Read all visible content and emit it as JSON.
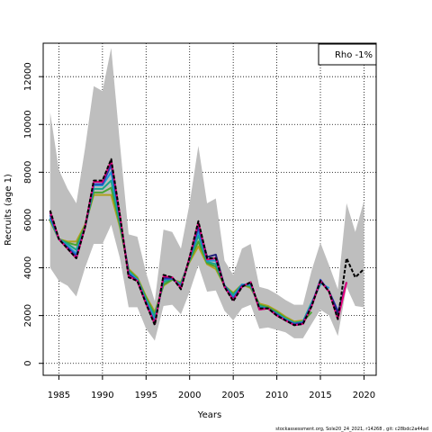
{
  "chart_data": {
    "type": "line",
    "title": "",
    "xlabel": "Years",
    "ylabel": "Recruits (age 1)",
    "xlim": [
      1983.2,
      2021.4
    ],
    "ylim": [
      -500,
      13400
    ],
    "x_ticks": [
      1985,
      1990,
      1995,
      2000,
      2005,
      2010,
      2015,
      2020
    ],
    "y_ticks": [
      0,
      2000,
      4000,
      6000,
      8000,
      10000,
      12000
    ],
    "grid": true,
    "grid_style": "dotted",
    "legend_text": "Rho -1%",
    "legend_position": "top-right",
    "footer": "stockassessment.org,  Sole20_24_2021,  r14268 ,  git:  c28bdc2a44ad",
    "confidence_band": {
      "color": "#bebebe",
      "x": [
        1984,
        1985,
        1986,
        1987,
        1988,
        1989,
        1990,
        1991,
        1992,
        1993,
        1994,
        1995,
        1996,
        1997,
        1998,
        1999,
        2000,
        2001,
        2002,
        2003,
        2004,
        2005,
        2006,
        2007,
        2008,
        2009,
        2010,
        2011,
        2012,
        2013,
        2014,
        2015,
        2016,
        2017,
        2018,
        2019,
        2020
      ],
      "upper": [
        10500,
        8100,
        7300,
        6700,
        9000,
        11600,
        11400,
        13200,
        9200,
        5400,
        5300,
        3800,
        2600,
        5600,
        5500,
        4800,
        6700,
        9100,
        6700,
        6900,
        4300,
        3700,
        4800,
        5000,
        3200,
        3100,
        2900,
        2650,
        2450,
        2450,
        3900,
        5050,
        4100,
        3100,
        6700,
        5500,
        6800
      ],
      "lower": [
        4000,
        3450,
        3250,
        2800,
        4000,
        5000,
        5000,
        5800,
        4400,
        2350,
        2350,
        1450,
        950,
        2400,
        2450,
        2050,
        3000,
        4100,
        3000,
        3050,
        2200,
        1800,
        2300,
        2450,
        1450,
        1500,
        1400,
        1300,
        1050,
        1050,
        1650,
        2250,
        2000,
        1150,
        3200,
        2400,
        2350
      ]
    },
    "series": [
      {
        "name": "",
        "color": "#000000",
        "dashed": true,
        "years": [
          1984,
          1985,
          1986,
          1987,
          1988,
          1989,
          1990,
          1991,
          1992,
          1993,
          1994,
          1995,
          1996,
          1997,
          1998,
          1999,
          2000,
          2001,
          2002,
          2003,
          2004,
          2005,
          2006,
          2007,
          2008,
          2009,
          2010,
          2011,
          2012,
          2013,
          2014,
          2015,
          2016,
          2017,
          2018,
          2019,
          2020
        ],
        "values": [
          6400,
          5200,
          4800,
          4400,
          5700,
          7650,
          7650,
          8550,
          6200,
          3600,
          3450,
          2500,
          1600,
          3700,
          3600,
          3100,
          4450,
          5950,
          4400,
          4400,
          3200,
          2600,
          3200,
          3400,
          2300,
          2300,
          2000,
          1800,
          1600,
          1650,
          2400,
          3450,
          3000,
          1850,
          4400,
          3600,
          3950
        ]
      },
      {
        "name": "",
        "color": "#e6007e",
        "years": [
          1984,
          1985,
          1986,
          1987,
          1988,
          1989,
          1990,
          1991,
          1992,
          1993,
          1994,
          1995,
          1996,
          1997,
          1998,
          1999,
          2000,
          2001,
          2002,
          2003,
          2004,
          2005,
          2006,
          2007,
          2008,
          2009,
          2010,
          2011,
          2012,
          2013,
          2014,
          2015,
          2016,
          2017,
          2018
        ],
        "values": [
          6350,
          5200,
          4800,
          4400,
          5700,
          7600,
          7600,
          8500,
          6200,
          3650,
          3450,
          2500,
          1650,
          3650,
          3600,
          3150,
          4450,
          5900,
          4350,
          4400,
          3200,
          2650,
          3200,
          3400,
          2250,
          2300,
          2000,
          1800,
          1600,
          1650,
          2400,
          3450,
          3000,
          1850,
          3400
        ]
      },
      {
        "name": "",
        "color": "#1f1f7a",
        "years": [
          1984,
          1985,
          1986,
          1987,
          1988,
          1989,
          1990,
          1991,
          1992,
          1993,
          1994,
          1995,
          1996,
          1997,
          1998,
          1999,
          2000,
          2001,
          2002,
          2003,
          2004,
          2005,
          2006,
          2007,
          2008,
          2009,
          2010,
          2011,
          2012,
          2013,
          2014,
          2015,
          2016,
          2017,
          2018
        ],
        "values": [
          6300,
          5200,
          4800,
          4400,
          5700,
          7600,
          7600,
          8450,
          6150,
          3700,
          3450,
          2500,
          1650,
          3600,
          3600,
          3150,
          4450,
          5850,
          4450,
          4550,
          3200,
          2650,
          3200,
          3400,
          2250,
          2300,
          2000,
          1800,
          1600,
          1650,
          2400,
          3450,
          3000,
          2100,
          3400
        ]
      },
      {
        "name": "",
        "color": "#2a3fb5",
        "years": [
          1984,
          1985,
          1986,
          1987,
          1988,
          1989,
          1990,
          1991,
          1992,
          1993,
          1994,
          1995,
          1996,
          1997,
          1998,
          1999,
          2000,
          2001,
          2002,
          2003,
          2004,
          2005,
          2006,
          2007,
          2008,
          2009,
          2010,
          2011,
          2012,
          2013,
          2014,
          2015,
          2016,
          2017
        ],
        "values": [
          6200,
          5200,
          4850,
          4500,
          5700,
          7500,
          7500,
          8300,
          6100,
          3750,
          3450,
          2550,
          1700,
          3550,
          3550,
          3200,
          4400,
          5700,
          4350,
          4400,
          3250,
          2700,
          3250,
          3350,
          2300,
          2300,
          2050,
          1800,
          1650,
          1700,
          2450,
          3500,
          3000,
          2200
        ]
      },
      {
        "name": "",
        "color": "#1e9bd6",
        "years": [
          1984,
          1985,
          1986,
          1987,
          1988,
          1989,
          1990,
          1991,
          1992,
          1993,
          1994,
          1995,
          1996,
          1997,
          1998,
          1999,
          2000,
          2001,
          2002,
          2003,
          2004,
          2005,
          2006,
          2007,
          2008,
          2009,
          2010,
          2011,
          2012,
          2013,
          2014,
          2015,
          2016
        ],
        "values": [
          6100,
          5200,
          4900,
          4600,
          5700,
          7450,
          7450,
          8000,
          6050,
          3800,
          3500,
          2600,
          1800,
          3500,
          3550,
          3250,
          4400,
          5550,
          4300,
          4300,
          3250,
          2750,
          3300,
          3300,
          2350,
          2300,
          2050,
          1850,
          1650,
          1700,
          2500,
          3350,
          3150
        ]
      },
      {
        "name": "",
        "color": "#17a589",
        "years": [
          1984,
          1985,
          1986,
          1987,
          1988,
          1989,
          1990,
          1991,
          1992,
          1993,
          1994,
          1995,
          1996,
          1997,
          1998,
          1999,
          2000,
          2001,
          2002,
          2003,
          2004,
          2005,
          2006,
          2007,
          2008,
          2009,
          2010,
          2011,
          2012,
          2013,
          2014,
          2015
        ],
        "values": [
          6050,
          5200,
          5000,
          4750,
          5700,
          7300,
          7300,
          7650,
          5900,
          3850,
          3500,
          2650,
          1950,
          3400,
          3550,
          3300,
          4350,
          5350,
          4250,
          4150,
          3250,
          2850,
          3300,
          3250,
          2400,
          2300,
          2100,
          1850,
          1700,
          1750,
          2550,
          3300
        ]
      },
      {
        "name": "",
        "color": "#4aa532",
        "years": [
          1984,
          1985,
          1986,
          1987,
          1988,
          1989,
          1990,
          1991,
          1992,
          1993,
          1994,
          1995,
          1996,
          1997,
          1998,
          1999,
          2000,
          2001,
          2002,
          2003,
          2004,
          2005,
          2006,
          2007,
          2008,
          2009,
          2010,
          2011,
          2012,
          2013,
          2014
        ],
        "values": [
          6000,
          5200,
          5050,
          4950,
          5750,
          7150,
          7150,
          7350,
          5800,
          3900,
          3550,
          2750,
          2050,
          3300,
          3500,
          3350,
          4300,
          5100,
          4200,
          4050,
          3250,
          2900,
          3300,
          3200,
          2450,
          2350,
          2150,
          1900,
          1700,
          1750,
          2150
        ]
      },
      {
        "name": "",
        "color": "#b0a020",
        "years": [
          1984,
          1985,
          1986,
          1987,
          1988,
          1989,
          1990,
          1991,
          1992,
          1993,
          1994,
          1995,
          1996,
          1997,
          1998,
          1999,
          2000,
          2001,
          2002,
          2003,
          2004,
          2005,
          2006,
          2007,
          2008,
          2009,
          2010,
          2011,
          2012,
          2013
        ],
        "values": [
          5950,
          5200,
          5100,
          5100,
          5800,
          7050,
          7050,
          7050,
          5700,
          3950,
          3600,
          2800,
          2150,
          3250,
          3500,
          3400,
          4250,
          4900,
          4150,
          3950,
          3250,
          2950,
          3300,
          3150,
          2500,
          2400,
          2200,
          1950,
          1750,
          1800
        ]
      }
    ]
  }
}
